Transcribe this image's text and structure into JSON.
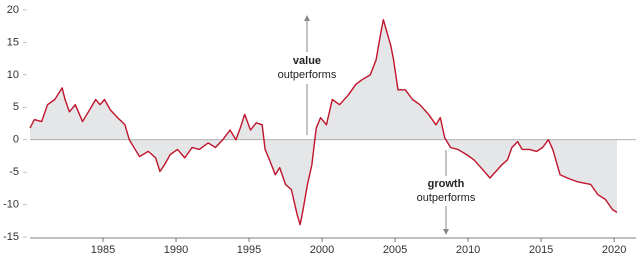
{
  "chart_data": {
    "type": "line",
    "x": [
      1980.0,
      1980.3,
      1980.8,
      1981.2,
      1981.7,
      1982.2,
      1982.4,
      1982.7,
      1983.1,
      1983.6,
      1984.0,
      1984.5,
      1984.8,
      1985.1,
      1985.5,
      1986.0,
      1986.5,
      1986.8,
      1987.2,
      1987.5,
      1988.1,
      1988.6,
      1988.9,
      1989.2,
      1989.6,
      1990.1,
      1990.6,
      1991.1,
      1991.6,
      1992.2,
      1992.7,
      1993.2,
      1993.7,
      1994.1,
      1994.4,
      1994.7,
      1995.1,
      1995.5,
      1995.9,
      1996.1,
      1996.4,
      1996.8,
      1997.1,
      1997.5,
      1997.9,
      1998.3,
      1998.5,
      1998.7,
      1999.0,
      1999.3,
      1999.6,
      1999.9,
      2000.3,
      2000.7,
      2001.2,
      2001.8,
      2002.3,
      2002.7,
      2003.3,
      2003.7,
      2004.0,
      2004.2,
      2004.4,
      2004.7,
      2004.9,
      2005.2,
      2005.7,
      2006.2,
      2006.7,
      2007.3,
      2007.8,
      2008.1,
      2008.4,
      2008.8,
      2009.3,
      2009.9,
      2010.4,
      2011.0,
      2011.5,
      2011.9,
      2012.3,
      2012.7,
      2013.0,
      2013.4,
      2013.7,
      2014.2,
      2014.7,
      2015.1,
      2015.5,
      2015.8,
      2016.3,
      2016.8,
      2017.5,
      2018.4,
      2018.9,
      2019.4,
      2019.9,
      2020.2
    ],
    "series": [
      {
        "color": "#c0142c",
        "values": [
          1.8,
          3.1,
          2.8,
          5.4,
          6.2,
          8.0,
          6.2,
          4.3,
          5.4,
          2.8,
          4.3,
          6.2,
          5.4,
          6.2,
          4.6,
          3.4,
          2.3,
          0,
          -1.5,
          -2.6,
          -1.8,
          -2.8,
          -4.9,
          -3.9,
          -2.3,
          -1.5,
          -2.8,
          -1.2,
          -1.5,
          -0.5,
          -1.2,
          0,
          1.5,
          0,
          1.8,
          3.9,
          1.5,
          2.6,
          2.3,
          -1.5,
          -3.1,
          -5.4,
          -4.3,
          -6.9,
          -7.7,
          -11.6,
          -13.1,
          -10.8,
          -6.9,
          -3.9,
          1.8,
          3.4,
          2.3,
          6.2,
          5.4,
          6.9,
          8.5,
          9.2,
          10.0,
          12.3,
          16.2,
          18.5,
          16.9,
          14.6,
          12.3,
          7.7,
          7.7,
          6.2,
          5.4,
          3.9,
          2.3,
          3.4,
          0.3,
          -1.2,
          -1.5,
          -2.3,
          -3.1,
          -4.6,
          -5.9,
          -4.9,
          -3.9,
          -3.1,
          -1.2,
          -0.3,
          -1.5,
          -1.5,
          -1.8,
          -1.2,
          0,
          -1.5,
          -5.4,
          -5.9,
          -6.5,
          -6.9,
          -8.5,
          -9.2,
          -10.8,
          -11.2
        ]
      }
    ],
    "xlim": [
      1980,
      2021.5
    ],
    "xticks": [
      1985,
      1990,
      1995,
      2000,
      2005,
      2010,
      2015,
      2020
    ],
    "ylim": [
      -15,
      20
    ],
    "yticks": [
      -15,
      -10,
      -5,
      0,
      5,
      10,
      15,
      20
    ],
    "fill_color": "#e5e6e8",
    "annotations": [
      {
        "text": "value",
        "sub": "outperforms"
      },
      {
        "text": "growth",
        "sub": "outperforms"
      }
    ]
  }
}
